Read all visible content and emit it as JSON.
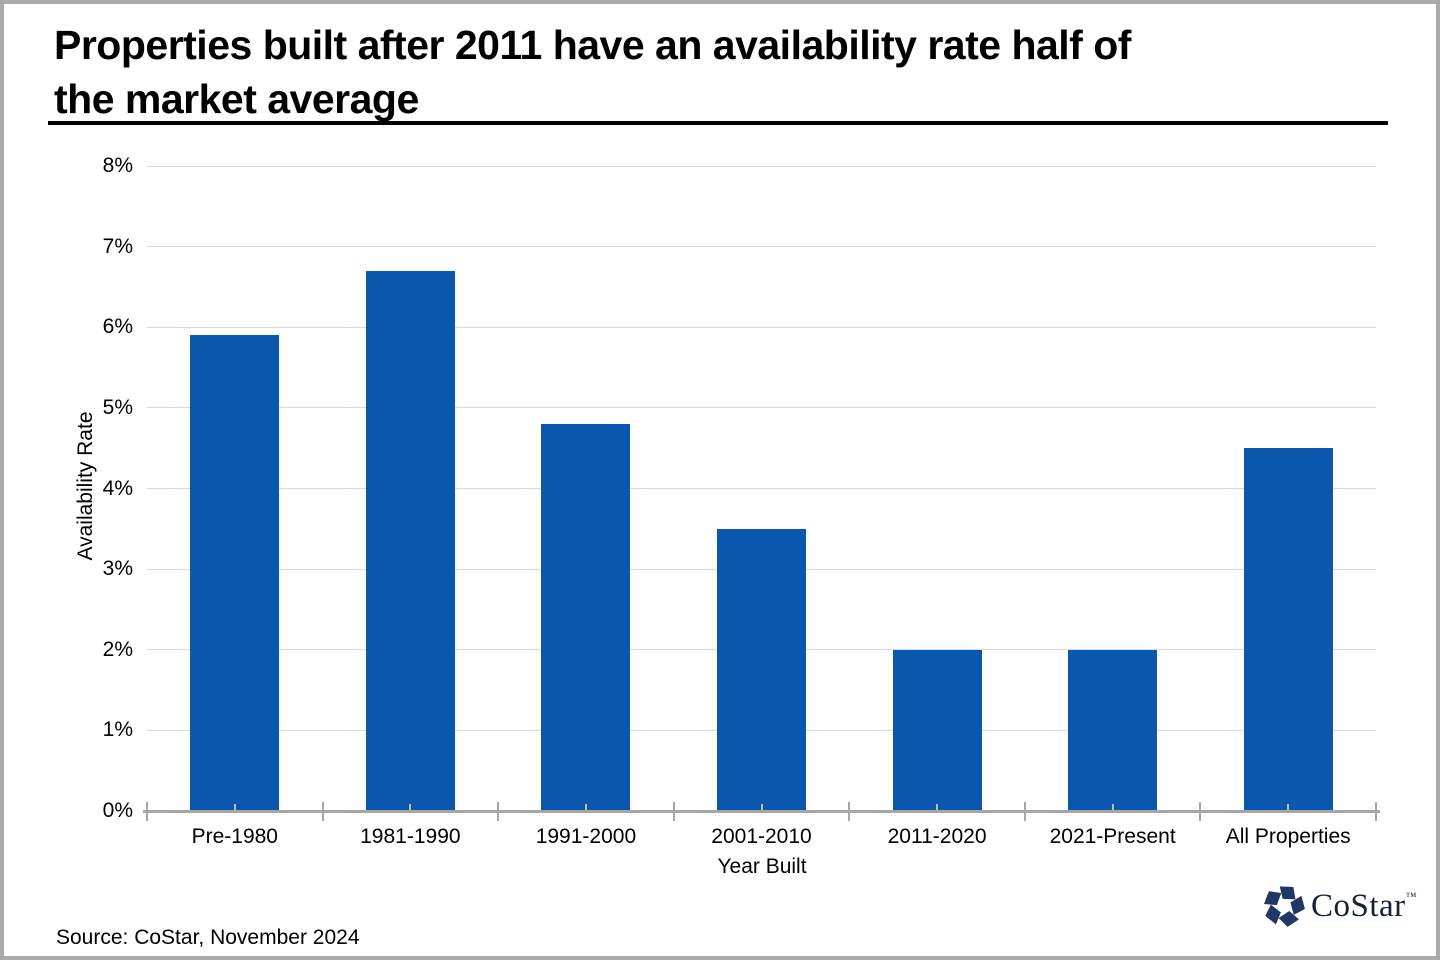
{
  "title": "Properties built after 2011 have an availability rate half of\nthe market average",
  "source": "Source: CoStar, November 2024",
  "logo": {
    "text": "CoStar",
    "tm": "™"
  },
  "colors": {
    "bar": "#0A57AF",
    "gridline": "#D9D9D9",
    "axis": "#A6A6A6",
    "minor_tick": "#BDBDBD",
    "title_text": "#000000",
    "logo_navy": "#1F3866",
    "logo_text": "#14213D"
  },
  "chart_data": {
    "type": "bar",
    "categories": [
      "Pre-1980",
      "1981-1990",
      "1991-2000",
      "2001-2010",
      "2011-2020",
      "2021-Present",
      "All Properties"
    ],
    "values": [
      5.9,
      6.7,
      4.8,
      3.5,
      2.0,
      2.0,
      4.5
    ],
    "title": "Properties built after 2011 have an availability rate half of the market average",
    "xlabel": "Year Built",
    "ylabel": "Availability Rate",
    "ylim": [
      0,
      8
    ],
    "ytick_step": 1,
    "ytick_suffix": "%",
    "grid": true,
    "legend": "none",
    "bar_color": "#0A57AF"
  }
}
